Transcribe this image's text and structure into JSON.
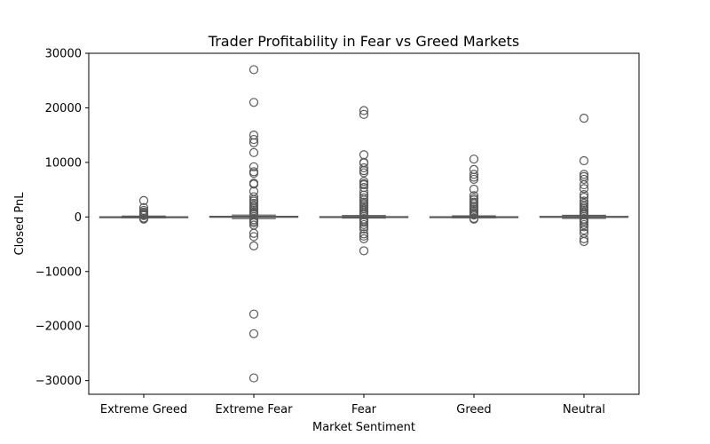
{
  "chart_data": {
    "type": "box",
    "title": "Trader Profitability in Fear vs Greed Markets",
    "xlabel": "Market Sentiment",
    "ylabel": "Closed PnL",
    "ylim": [
      -32500,
      30000
    ],
    "yticks": [
      -30000,
      -20000,
      -10000,
      0,
      10000,
      20000,
      30000
    ],
    "ytick_labels": [
      "−30000",
      "−20000",
      "−10000",
      "0",
      "10000",
      "20000",
      "30000"
    ],
    "categories": [
      "Extreme Greed",
      "Extreme Fear",
      "Fear",
      "Greed",
      "Neutral"
    ],
    "grid": false,
    "colors": {
      "box_edge": "#595959",
      "box_fill": "#4c72b0",
      "outlier": "#595959"
    },
    "boxes": [
      {
        "category": "Extreme Greed",
        "whisker_low": -150,
        "q1": -20,
        "median": 0,
        "q3": 30,
        "whisker_high": 150,
        "outliers": [
          3000,
          1700,
          1200,
          900,
          700,
          500,
          350,
          250,
          -200,
          -300,
          -400
        ]
      },
      {
        "category": "Extreme Fear",
        "whisker_low": -300,
        "q1": -50,
        "median": 0,
        "q3": 120,
        "whisker_high": 350,
        "outliers": [
          27000,
          21000,
          15000,
          14200,
          13600,
          11800,
          9200,
          8300,
          8000,
          6200,
          6000,
          4700,
          3700,
          3200,
          2900,
          2500,
          2100,
          1800,
          1500,
          1200,
          900,
          700,
          500,
          -500,
          -800,
          -1100,
          -1500,
          -3000,
          -3600,
          -5300,
          -17800,
          -21400,
          -29500
        ]
      },
      {
        "category": "Fear",
        "whisker_low": -200,
        "q1": -30,
        "median": 0,
        "q3": 60,
        "whisker_high": 250,
        "outliers": [
          19500,
          18800,
          11400,
          10000,
          9900,
          9000,
          8500,
          8100,
          6500,
          6100,
          5900,
          5400,
          4600,
          4000,
          3500,
          3100,
          2700,
          2400,
          2100,
          1800,
          1500,
          1200,
          900,
          600,
          400,
          -400,
          -700,
          -1000,
          -1400,
          -1800,
          -2200,
          -3100,
          -3500,
          -4000,
          -6200
        ]
      },
      {
        "category": "Greed",
        "whisker_low": -150,
        "q1": -20,
        "median": 0,
        "q3": 40,
        "whisker_high": 200,
        "outliers": [
          10600,
          8700,
          7800,
          7300,
          6900,
          5100,
          3900,
          3400,
          3100,
          2700,
          2400,
          2000,
          1700,
          1400,
          1100,
          800,
          500,
          350,
          -250,
          -400
        ]
      },
      {
        "category": "Neutral",
        "whisker_low": -250,
        "q1": -40,
        "median": 0,
        "q3": 100,
        "whisker_high": 300,
        "outliers": [
          18100,
          10300,
          7800,
          7400,
          6900,
          5900,
          5200,
          4100,
          3600,
          2900,
          2500,
          2100,
          1800,
          1500,
          1200,
          900,
          600,
          400,
          -400,
          -700,
          -1000,
          -1400,
          -1800,
          -2400,
          -3000,
          -4000,
          -4500
        ]
      }
    ]
  }
}
